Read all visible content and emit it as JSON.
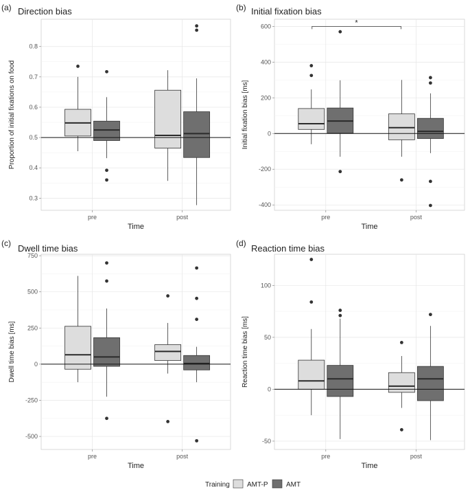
{
  "legend": {
    "title": "Training",
    "items": [
      {
        "label": "AMT-P",
        "color": "#dddddd"
      },
      {
        "label": "AMT",
        "color": "#6f6f6f"
      }
    ]
  },
  "chart_data": [
    {
      "type": "boxplot",
      "tag": "(a)",
      "title": "Direction bias",
      "xlabel": "Time",
      "ylabel": "Proportion of initial fixations on food",
      "categories": [
        "pre",
        "post"
      ],
      "ylim": [
        0.26,
        0.89
      ],
      "yticks": [
        0.3,
        0.4,
        0.5,
        0.6,
        0.7,
        0.8
      ],
      "yticklabels": [
        "0.3",
        "0.4",
        "0.5",
        "0.6",
        "0.7",
        "0.8"
      ],
      "hline": 0.5,
      "series": [
        {
          "name": "AMT-P",
          "boxes": [
            {
              "whislo": 0.455,
              "q1": 0.505,
              "med": 0.548,
              "q3": 0.593,
              "whishi": 0.7,
              "outliers": [
                0.735
              ]
            },
            {
              "whislo": 0.357,
              "q1": 0.465,
              "med": 0.507,
              "q3": 0.656,
              "whishi": 0.722,
              "outliers": []
            }
          ]
        },
        {
          "name": "AMT",
          "boxes": [
            {
              "whislo": 0.432,
              "q1": 0.49,
              "med": 0.525,
              "q3": 0.554,
              "whishi": 0.633,
              "outliers": [
                0.717,
                0.392,
                0.36
              ]
            },
            {
              "whislo": 0.277,
              "q1": 0.434,
              "med": 0.513,
              "q3": 0.585,
              "whishi": 0.695,
              "outliers": [
                0.868,
                0.854
              ]
            }
          ]
        }
      ]
    },
    {
      "type": "boxplot",
      "tag": "(b)",
      "title": "Initial fixation bias",
      "xlabel": "Time",
      "ylabel": "Initial fixation bias [ms]",
      "categories": [
        "pre",
        "post"
      ],
      "ylim": [
        -430,
        640
      ],
      "yticks": [
        -400,
        -200,
        0,
        200,
        400,
        600
      ],
      "yticklabels": [
        "-400",
        "-200",
        "0",
        "200",
        "400",
        "600"
      ],
      "hline": 0,
      "significance": {
        "label": "*",
        "y": 600
      },
      "series": [
        {
          "name": "AMT-P",
          "boxes": [
            {
              "whislo": -60,
              "q1": 23,
              "med": 55,
              "q3": 140,
              "whishi": 247,
              "outliers": [
                380,
                325
              ]
            },
            {
              "whislo": -130,
              "q1": -35,
              "med": 33,
              "q3": 110,
              "whishi": 300,
              "outliers": [
                -260
              ]
            }
          ]
        },
        {
          "name": "AMT",
          "boxes": [
            {
              "whislo": -130,
              "q1": 2,
              "med": 70,
              "q3": 143,
              "whishi": 298,
              "outliers": [
                570,
                -213
              ]
            },
            {
              "whislo": -110,
              "q1": -28,
              "med": 12,
              "q3": 85,
              "whishi": 225,
              "outliers": [
                313,
                283,
                -268,
                -403
              ]
            }
          ]
        }
      ]
    },
    {
      "type": "boxplot",
      "tag": "(c)",
      "title": "Dwell time bias",
      "xlabel": "Time",
      "ylabel": "Dwell time bias [ms]",
      "categories": [
        "pre",
        "post"
      ],
      "ylim": [
        -590,
        760
      ],
      "yticks": [
        -500,
        -250,
        0,
        250,
        500,
        750
      ],
      "yticklabels": [
        "-500",
        "-250",
        "0",
        "250",
        "500",
        "750"
      ],
      "hline": 0,
      "series": [
        {
          "name": "AMT-P",
          "boxes": [
            {
              "whislo": -125,
              "q1": -35,
              "med": 65,
              "q3": 262,
              "whishi": 610,
              "outliers": []
            },
            {
              "whislo": -65,
              "q1": 25,
              "med": 88,
              "q3": 135,
              "whishi": 285,
              "outliers": [
                472,
                -397
              ]
            }
          ]
        },
        {
          "name": "AMT",
          "boxes": [
            {
              "whislo": -225,
              "q1": -15,
              "med": 50,
              "q3": 183,
              "whishi": 385,
              "outliers": [
                700,
                575,
                -375
              ]
            },
            {
              "whislo": -125,
              "q1": -40,
              "med": 5,
              "q3": 60,
              "whishi": 120,
              "outliers": [
                665,
                455,
                310,
                -530
              ]
            }
          ]
        }
      ]
    },
    {
      "type": "boxplot",
      "tag": "(d)",
      "title": "Reaction time bias",
      "xlabel": "Time",
      "ylabel": "Reaction time bias [ms]",
      "categories": [
        "pre",
        "post"
      ],
      "ylim": [
        -58,
        130
      ],
      "yticks": [
        -50,
        0,
        50,
        100
      ],
      "yticklabels": [
        "-50",
        "0",
        "50",
        "100"
      ],
      "hline": 0,
      "series": [
        {
          "name": "AMT-P",
          "boxes": [
            {
              "whislo": -25,
              "q1": 0,
              "med": 8,
              "q3": 28,
              "whishi": 58,
              "outliers": [
                125,
                84
              ]
            },
            {
              "whislo": -18,
              "q1": -3,
              "med": 3,
              "q3": 16,
              "whishi": 32,
              "outliers": [
                45,
                -39
              ]
            }
          ]
        },
        {
          "name": "AMT",
          "boxes": [
            {
              "whislo": -48,
              "q1": -7,
              "med": 10,
              "q3": 23,
              "whishi": 68,
              "outliers": [
                76,
                71
              ]
            },
            {
              "whislo": -49,
              "q1": -11,
              "med": 10,
              "q3": 22,
              "whishi": 61,
              "outliers": [
                72
              ]
            }
          ]
        }
      ]
    }
  ]
}
